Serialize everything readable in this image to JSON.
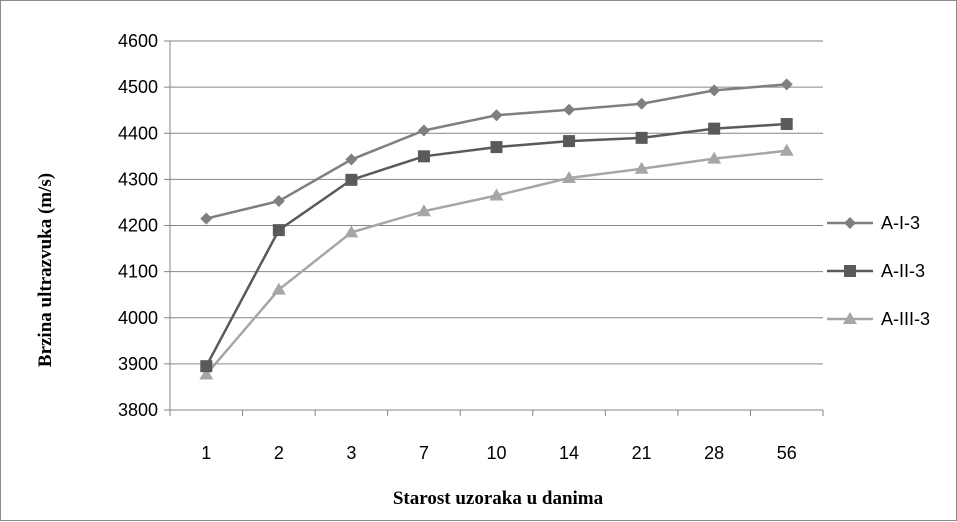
{
  "chart_data": {
    "type": "line",
    "categories": [
      "1",
      "2",
      "3",
      "7",
      "10",
      "14",
      "21",
      "28",
      "56"
    ],
    "ylim": [
      3800,
      4600
    ],
    "yticks": [
      3800,
      3900,
      4000,
      4100,
      4200,
      4300,
      4400,
      4500,
      4600
    ],
    "xlabel": "Starost uzoraka u danima",
    "ylabel": "Brzina ultrazvuka (m/s)",
    "grid": "horizontal",
    "legend_position": "right",
    "series": [
      {
        "name": "A-I-3",
        "marker": "diamond",
        "color": "#7f7f7f",
        "values": [
          4215,
          4253,
          4343,
          4406,
          4439,
          4451,
          4464,
          4493,
          4506
        ]
      },
      {
        "name": "A-II-3",
        "marker": "square",
        "color": "#5a5a5a",
        "values": [
          3895,
          4190,
          4299,
          4350,
          4370,
          4383,
          4390,
          4410,
          4420
        ]
      },
      {
        "name": "A-III-3",
        "marker": "triangle",
        "color": "#a6a6a6",
        "values": [
          3877,
          4061,
          4185,
          4231,
          4265,
          4303,
          4323,
          4345,
          4362
        ]
      }
    ]
  }
}
